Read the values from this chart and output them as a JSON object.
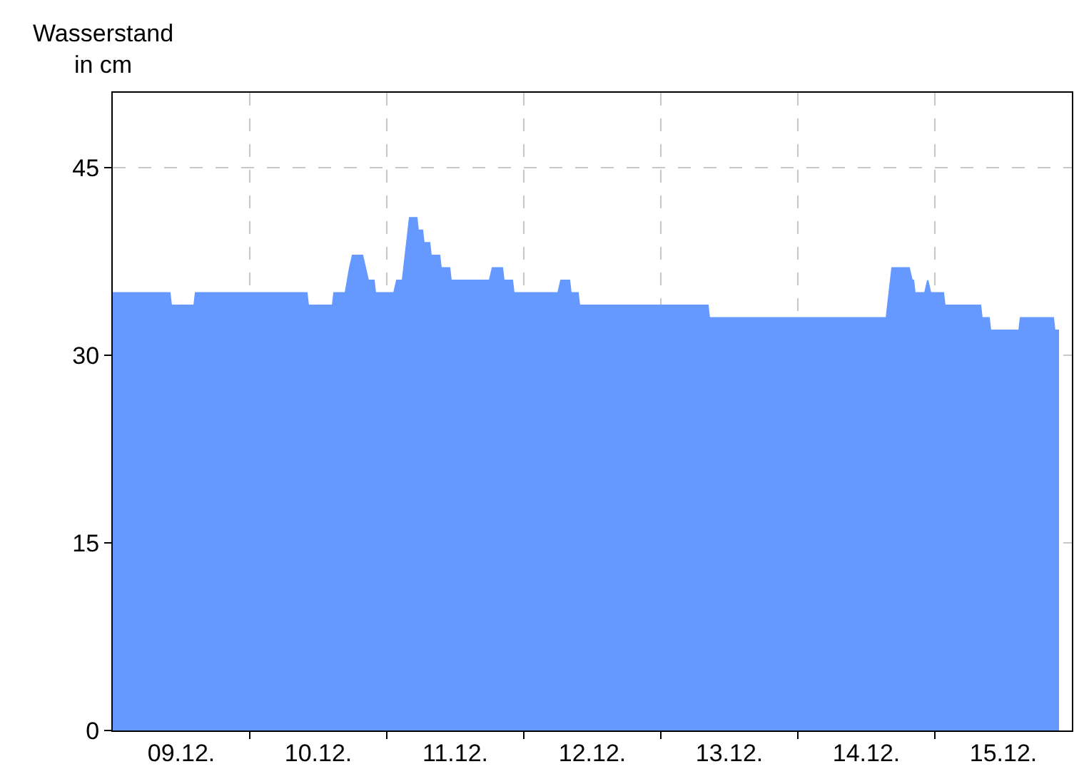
{
  "chart_data": {
    "type": "area",
    "ylabel": "Wasserstand\nin cm",
    "x": [
      "--12-09T00:00",
      "--12-09T10:00",
      "--12-09T10:15",
      "--12-09T14:15",
      "--12-09T14:30",
      "--12-10T10:00",
      "--12-10T10:15",
      "--12-10T14:30",
      "--12-10T14:45",
      "--12-10T16:45",
      "--12-10T17:30",
      "--12-10T18:00",
      "--12-10T19:45",
      "--12-10T20:15",
      "--12-10T20:45",
      "--12-10T21:45",
      "--12-10T22:00",
      "--12-11T01:15",
      "--12-11T01:45",
      "--12-11T02:45",
      "--12-11T04:00",
      "--12-11T05:15",
      "--12-11T05:30",
      "--12-11T06:15",
      "--12-11T06:30",
      "--12-11T07:30",
      "--12-11T07:45",
      "--12-11T09:15",
      "--12-11T09:30",
      "--12-11T11:00",
      "--12-11T11:15",
      "--12-11T18:00",
      "--12-11T18:30",
      "--12-11T20:15",
      "--12-11T20:30",
      "--12-11T22:00",
      "--12-11T22:15",
      "--12-12T06:00",
      "--12-12T06:30",
      "--12-12T08:00",
      "--12-12T08:15",
      "--12-12T09:30",
      "--12-12T09:45",
      "--12-13T08:15",
      "--12-13T08:30",
      "--12-14T15:30",
      "--12-14T16:30",
      "--12-14T19:30",
      "--12-14T20:00",
      "--12-14T20:15",
      "--12-14T20:30",
      "--12-14T22:15",
      "--12-14T22:45",
      "--12-14T23:15",
      "--12-15T01:30",
      "--12-15T01:45",
      "--12-15T08:00",
      "--12-15T08:15",
      "--12-15T09:30",
      "--12-15T09:45",
      "--12-15T14:45",
      "--12-15T15:00",
      "--12-15T20:45",
      "--12-15T21:00",
      "--12-15T21:45"
    ],
    "series": [
      {
        "color": "#6699ff",
        "values": [
          35,
          35,
          34,
          34,
          35,
          35,
          34,
          34,
          35,
          35,
          37,
          38,
          38,
          37,
          36,
          36,
          35,
          35,
          36,
          36,
          41,
          41,
          40,
          40,
          39,
          39,
          38,
          38,
          37,
          37,
          36,
          36,
          37,
          37,
          36,
          36,
          35,
          35,
          36,
          36,
          35,
          35,
          34,
          34,
          33,
          33,
          37,
          37,
          36,
          36,
          35,
          35,
          36,
          35,
          35,
          34,
          34,
          33,
          33,
          32,
          32,
          33,
          33,
          32,
          32
        ]
      }
    ],
    "xlim": [
      "--12-09T00:00",
      "--12-16T00:00"
    ],
    "xticks": [
      {
        "value": "--12-09T12:00",
        "label": "09.12."
      },
      {
        "value": "--12-10T00:00",
        "label": null
      },
      {
        "value": "--12-10T12:00",
        "label": "10.12."
      },
      {
        "value": "--12-11T00:00",
        "label": null
      },
      {
        "value": "--12-11T12:00",
        "label": "11.12."
      },
      {
        "value": "--12-12T00:00",
        "label": null
      },
      {
        "value": "--12-12T12:00",
        "label": "12.12."
      },
      {
        "value": "--12-13T00:00",
        "label": null
      },
      {
        "value": "--12-13T12:00",
        "label": "13.12."
      },
      {
        "value": "--12-14T00:00",
        "label": null
      },
      {
        "value": "--12-14T12:00",
        "label": "14.12."
      },
      {
        "value": "--12-15T00:00",
        "label": null
      },
      {
        "value": "--12-15T12:00",
        "label": "15.12."
      }
    ],
    "ylim": [
      0,
      51
    ],
    "yticks": [
      0,
      15,
      30,
      45
    ],
    "grid": true,
    "legend": false
  }
}
